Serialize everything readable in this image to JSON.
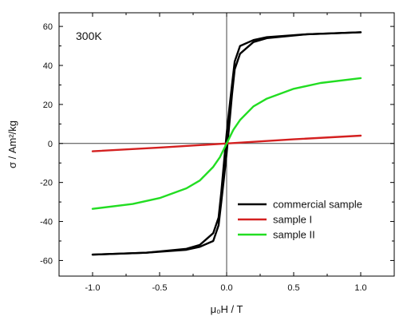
{
  "chart_data": {
    "type": "line",
    "annotation": "300K",
    "xlabel": "μ₀H / T",
    "ylabel": "σ / Am²/kg",
    "xlim": [
      -1.25,
      1.25
    ],
    "ylim": [
      -68,
      67
    ],
    "x_ticks": [
      -1.0,
      -0.5,
      0.0,
      0.5,
      1.0
    ],
    "x_tick_labels": [
      "-1.0",
      "-0.5",
      "0.0",
      "0.5",
      "1.0"
    ],
    "y_ticks": [
      -60,
      -40,
      -20,
      0,
      20,
      40,
      60
    ],
    "y_tick_labels": [
      "-60",
      "-40",
      "-20",
      "0",
      "20",
      "40",
      "60"
    ],
    "grid": false,
    "legend_position": "lower-right",
    "series": [
      {
        "name": "commercial sample",
        "color": "#000000",
        "branches": [
          {
            "x": [
              -1.0,
              -0.6,
              -0.3,
              -0.2,
              -0.1,
              -0.06,
              -0.04,
              -0.02,
              0.0,
              0.02,
              0.04,
              0.06,
              0.1,
              0.2,
              0.3,
              0.6,
              1.0
            ],
            "y": [
              -57,
              -56,
              -54,
              -52,
              -46,
              -38,
              -25,
              -10,
              5,
              18,
              30,
              42,
              50,
              53,
              54.5,
              56,
              57
            ]
          },
          {
            "x": [
              1.0,
              0.6,
              0.3,
              0.2,
              0.1,
              0.06,
              0.04,
              0.02,
              0.0,
              -0.02,
              -0.04,
              -0.06,
              -0.1,
              -0.2,
              -0.3,
              -0.6,
              -1.0
            ],
            "y": [
              57,
              56,
              54,
              52,
              46,
              38,
              25,
              10,
              -5,
              -18,
              -30,
              -42,
              -50,
              -53,
              -54.5,
              -56,
              -57
            ]
          }
        ]
      },
      {
        "name": "sample I",
        "color": "#d42020",
        "branches": [
          {
            "x": [
              -1.0,
              -0.5,
              0.0,
              0.5,
              1.0
            ],
            "y": [
              -4,
              -2.1,
              0,
              2.1,
              4
            ]
          }
        ]
      },
      {
        "name": "sample II",
        "color": "#22dd22",
        "branches": [
          {
            "x": [
              -1.0,
              -0.7,
              -0.5,
              -0.3,
              -0.2,
              -0.1,
              -0.05,
              0.0,
              0.05,
              0.1,
              0.2,
              0.3,
              0.5,
              0.7,
              1.0
            ],
            "y": [
              -33.5,
              -31,
              -28,
              -23,
              -19,
              -12,
              -7,
              0,
              7,
              12,
              19,
              23,
              28,
              31,
              33.5
            ]
          }
        ]
      }
    ]
  }
}
